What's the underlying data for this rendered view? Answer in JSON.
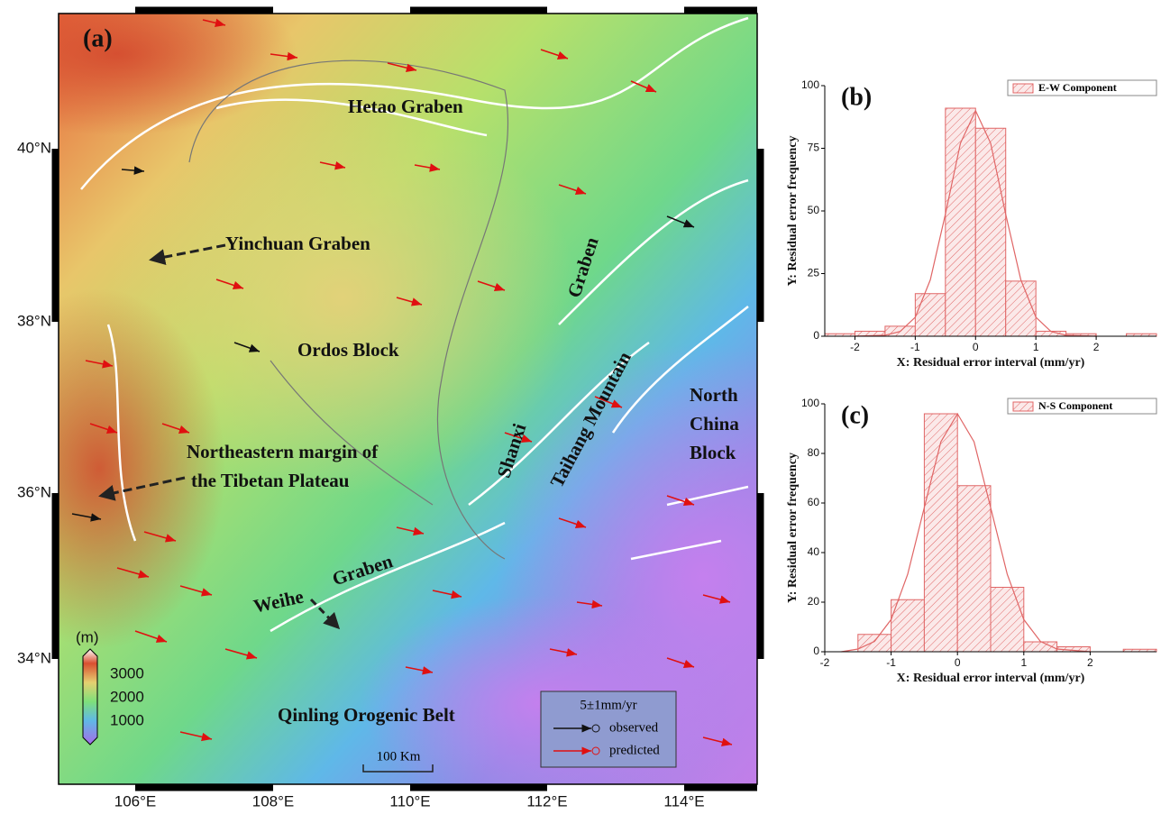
{
  "map": {
    "panel_label": "(a)",
    "lat_ticks": [
      "40°N",
      "38°N",
      "36°N",
      "34°N"
    ],
    "lon_ticks": [
      "106°E",
      "108°E",
      "110°E",
      "112°E",
      "114°E"
    ],
    "labels": [
      "Hetao Graben",
      "Yinchuan Graben",
      "Ordos Block",
      "Northeastern margin of",
      "the Tibetan Plateau",
      "Shanxi",
      "Graben",
      "Taihang Mountain",
      "North",
      "China",
      "Block",
      "Weihe",
      "Graben",
      "Qinling Orogenic Belt"
    ],
    "colorbar": {
      "unit": "(m)",
      "ticks": [
        "3000",
        "2000",
        "1000"
      ]
    },
    "legend": {
      "title": "5±1mm/yr",
      "items": [
        "observed",
        "predicted"
      ]
    },
    "scale": "100 Km"
  },
  "chart_data": [
    {
      "type": "histogram",
      "panel_label": "(b)",
      "legend_label": "E-W Component",
      "xlabel": "X: Residual error interval (mm/yr)",
      "ylabel": "Y: Residual error frequency",
      "color": "#e06666",
      "bins": [
        -2.5,
        -2,
        -1.5,
        -1,
        -0.5,
        0,
        0.5,
        1,
        1.5,
        2,
        2.5,
        3
      ],
      "counts": [
        1,
        2,
        4,
        17,
        91,
        83,
        22,
        2,
        1,
        0,
        1
      ],
      "xlim": [
        -2.5,
        3
      ],
      "xticks": [
        -2,
        -1,
        0,
        1,
        2
      ],
      "ylim": [
        0,
        100
      ],
      "yticks": [
        0,
        25,
        50,
        75,
        100
      ],
      "fit": {
        "x": [
          -2,
          -1.5,
          -1.25,
          -1,
          -0.75,
          -0.5,
          -0.25,
          0,
          0.25,
          0.5,
          0.75,
          1,
          1.25,
          1.5,
          2
        ],
        "values": [
          0,
          0.4,
          1.9,
          7.6,
          22.5,
          48.7,
          77,
          90,
          77,
          48.7,
          22.5,
          7.6,
          1.9,
          0.4,
          0
        ]
      }
    },
    {
      "type": "histogram",
      "panel_label": "(c)",
      "legend_label": "N-S Component",
      "xlabel": "X: Residual error interval (mm/yr)",
      "ylabel": "Y: Residual error frequency",
      "color": "#e06666",
      "bins": [
        -1.5,
        -1,
        -0.5,
        0,
        0.5,
        1,
        1.5,
        2,
        2.5,
        3
      ],
      "counts": [
        7,
        21,
        96,
        67,
        26,
        4,
        2,
        0,
        1
      ],
      "xlim": [
        -2,
        3
      ],
      "xticks": [
        -2,
        -1,
        0,
        1,
        2
      ],
      "ylim": [
        0,
        100
      ],
      "yticks": [
        0,
        20,
        40,
        60,
        80,
        100
      ],
      "fit": {
        "x": [
          -1.75,
          -1.5,
          -1.25,
          -1,
          -0.75,
          -0.5,
          -0.25,
          0,
          0.25,
          0.5,
          0.75,
          1,
          1.25,
          1.5,
          2
        ],
        "values": [
          0,
          1.1,
          4.2,
          13,
          31.3,
          58.2,
          84.7,
          96,
          84.7,
          58.2,
          31.3,
          13,
          4.2,
          1.1,
          0
        ]
      }
    }
  ]
}
